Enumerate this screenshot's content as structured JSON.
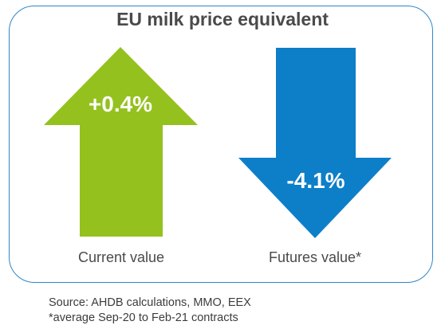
{
  "title": "EU milk price equivalent",
  "current": {
    "value": "+0.4%",
    "label": "Current value",
    "direction": "up",
    "color": "#95c11f"
  },
  "futures": {
    "value": "-4.1%",
    "label": "Futures value*",
    "direction": "down",
    "color": "#0d7fc9"
  },
  "source": "Source: AHDB calculations, MMO, EEX",
  "note": "*average Sep-20 to Feb-21 contracts",
  "colors": {
    "border": "#2f86c8",
    "title_text": "#4a4a4a"
  }
}
